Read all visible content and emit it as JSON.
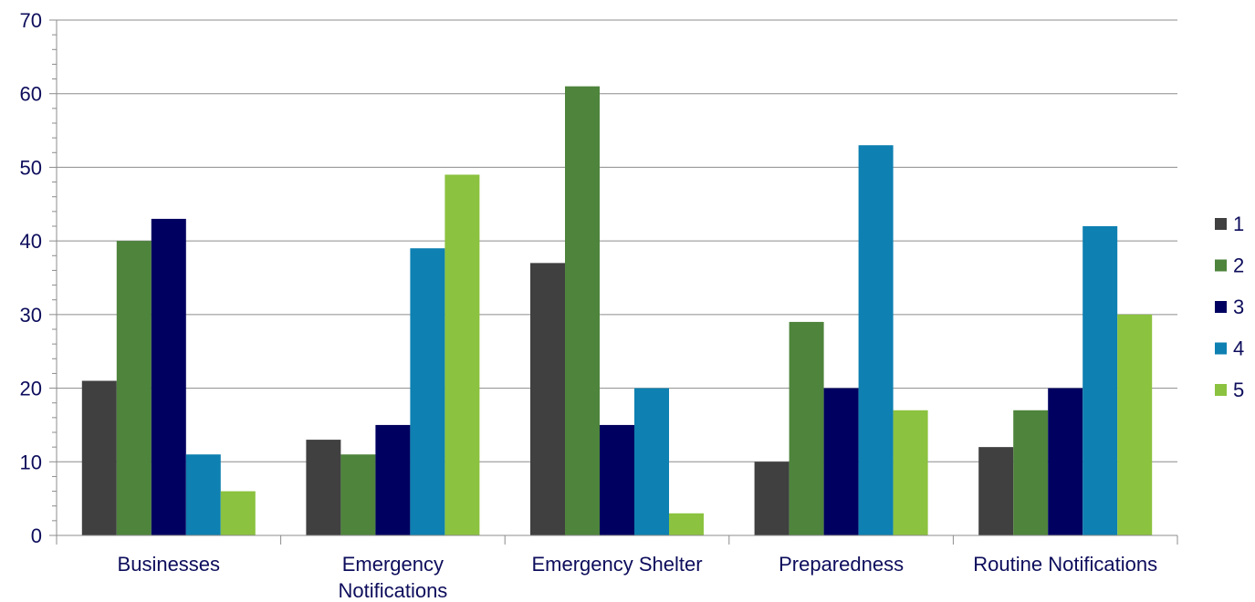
{
  "chart_data": {
    "type": "bar",
    "title": "",
    "xlabel": "",
    "ylabel": "",
    "ylim": [
      0,
      70
    ],
    "yticks": [
      0,
      10,
      20,
      30,
      40,
      50,
      60,
      70
    ],
    "grid": true,
    "legend_position": "right",
    "categories": [
      [
        "Businesses"
      ],
      [
        "Emergency",
        "Notifications"
      ],
      [
        "Emergency Shelter"
      ],
      [
        "Preparedness"
      ],
      [
        "Routine Notifications"
      ]
    ],
    "series": [
      {
        "name": "1",
        "color": "#404040",
        "values": [
          21,
          13,
          37,
          10,
          12
        ]
      },
      {
        "name": "2",
        "color": "#4e843c",
        "values": [
          40,
          11,
          61,
          29,
          17
        ]
      },
      {
        "name": "3",
        "color": "#000060",
        "values": [
          43,
          15,
          15,
          20,
          20
        ]
      },
      {
        "name": "4",
        "color": "#0e80b1",
        "values": [
          11,
          39,
          20,
          53,
          42
        ]
      },
      {
        "name": "5",
        "color": "#8bc23f",
        "values": [
          6,
          49,
          3,
          17,
          30
        ]
      }
    ]
  }
}
